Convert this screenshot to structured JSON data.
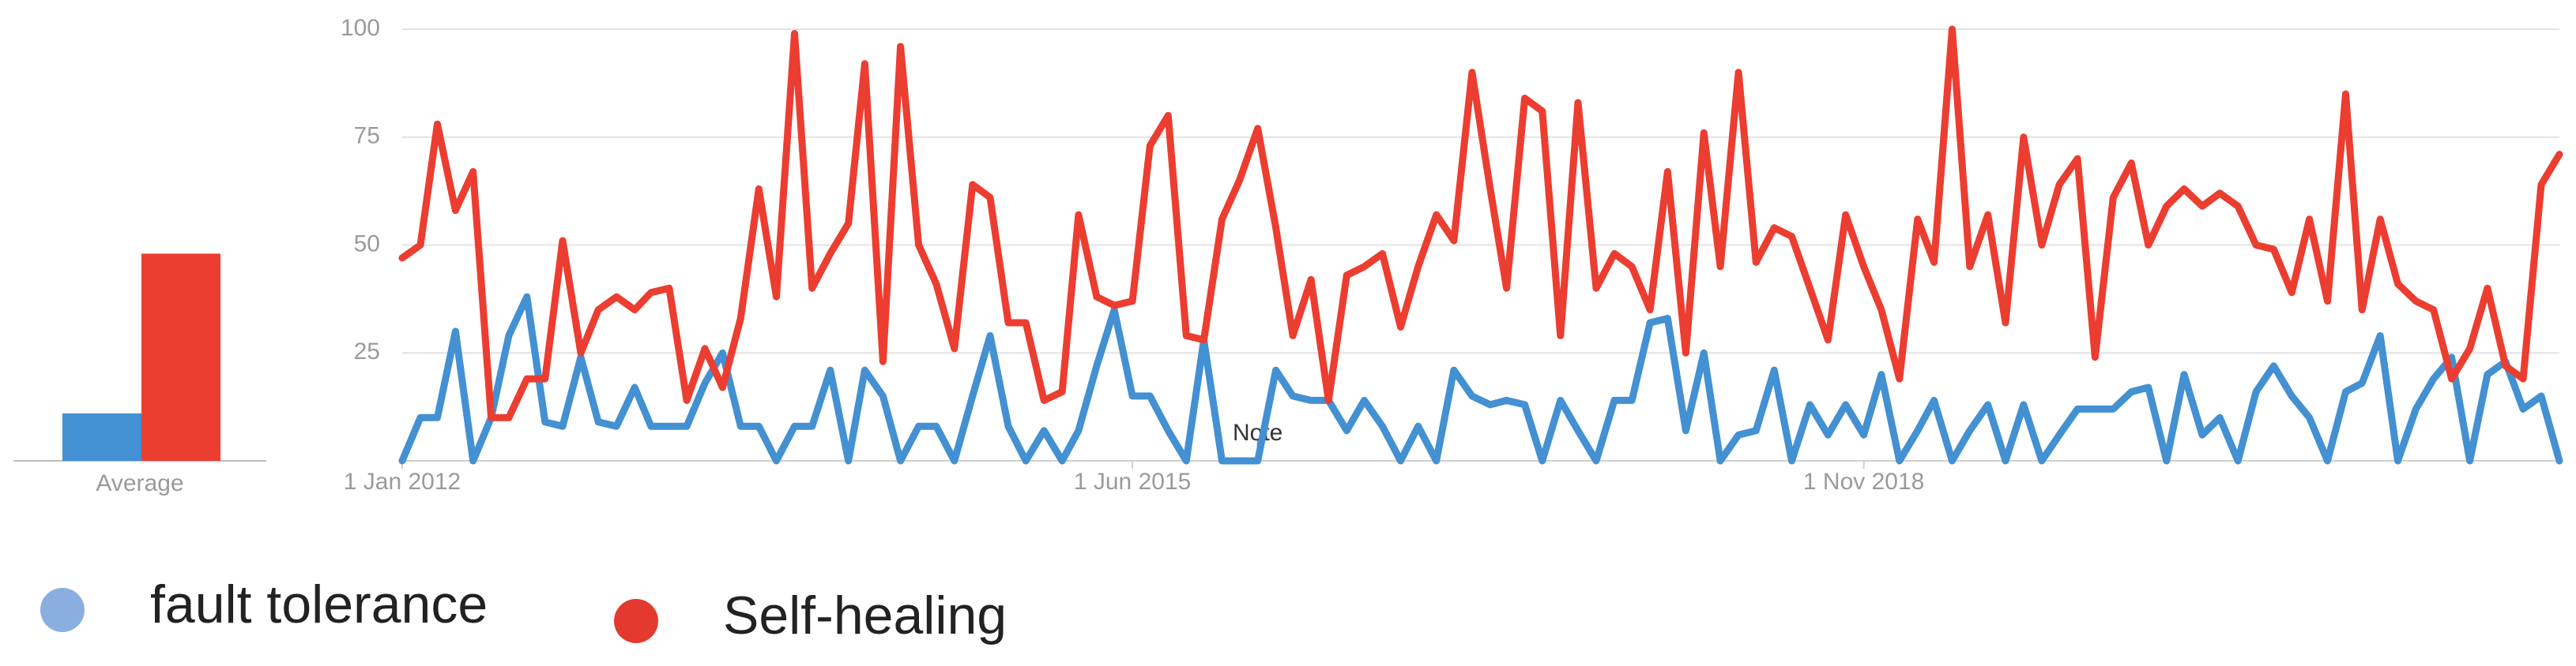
{
  "chart_data": {
    "type": "line",
    "average_label": "Average",
    "x": [
      "2012-01-01",
      "2012-02-01",
      "2012-03-01",
      "2012-04-01",
      "2012-05-01",
      "2012-06-01",
      "2012-07-01",
      "2012-08-01",
      "2012-09-01",
      "2012-10-01",
      "2012-11-01",
      "2012-12-01",
      "2013-01-01",
      "2013-02-01",
      "2013-03-01",
      "2013-04-01",
      "2013-05-01",
      "2013-06-01",
      "2013-07-01",
      "2013-08-01",
      "2013-09-01",
      "2013-10-01",
      "2013-11-01",
      "2013-12-01",
      "2014-01-01",
      "2014-02-01",
      "2014-03-01",
      "2014-04-01",
      "2014-05-01",
      "2014-06-01",
      "2014-07-01",
      "2014-08-01",
      "2014-09-01",
      "2014-10-01",
      "2014-11-01",
      "2014-12-01",
      "2015-01-01",
      "2015-02-01",
      "2015-03-01",
      "2015-04-01",
      "2015-05-01",
      "2015-06-01",
      "2015-07-01",
      "2015-08-01",
      "2015-09-01",
      "2015-10-01",
      "2015-11-01",
      "2015-12-01",
      "2016-01-01",
      "2016-02-01",
      "2016-03-01",
      "2016-04-01",
      "2016-05-01",
      "2016-06-01",
      "2016-07-01",
      "2016-08-01",
      "2016-09-01",
      "2016-10-01",
      "2016-11-01",
      "2016-12-01",
      "2017-01-01",
      "2017-02-01",
      "2017-03-01",
      "2017-04-01",
      "2017-05-01",
      "2017-06-01",
      "2017-07-01",
      "2017-08-01",
      "2017-09-01",
      "2017-10-01",
      "2017-11-01",
      "2017-12-01",
      "2018-01-01",
      "2018-02-01",
      "2018-03-01",
      "2018-04-01",
      "2018-05-01",
      "2018-06-01",
      "2018-07-01",
      "2018-08-01",
      "2018-09-01",
      "2018-10-01",
      "2018-11-01",
      "2018-12-01",
      "2019-01-01",
      "2019-02-01",
      "2019-03-01",
      "2019-04-01",
      "2019-05-01",
      "2019-06-01",
      "2019-07-01",
      "2019-08-01",
      "2019-09-01",
      "2019-10-01",
      "2019-11-01",
      "2019-12-01",
      "2020-01-01",
      "2020-02-01",
      "2020-03-01",
      "2020-04-01",
      "2020-05-01",
      "2020-06-01",
      "2020-07-01",
      "2020-08-01",
      "2020-09-01",
      "2020-10-01",
      "2020-11-01",
      "2020-12-01",
      "2021-01-01",
      "2021-02-01",
      "2021-03-01",
      "2021-04-01",
      "2021-05-01",
      "2021-06-01",
      "2021-07-01",
      "2021-08-01",
      "2021-09-01",
      "2021-10-01",
      "2021-11-01",
      "2021-12-01",
      "2022-01-01",
      "2022-02-01"
    ],
    "xlim": [
      "2012-01-01",
      "2022-02-01"
    ],
    "xticks": [
      {
        "value": "2012-01-01",
        "label": "1 Jan 2012"
      },
      {
        "value": "2015-06-01",
        "label": "1 Jun 2015"
      },
      {
        "value": "2018-11-01",
        "label": "1 Nov 2018"
      }
    ],
    "ylim": [
      0,
      100
    ],
    "yticks": [
      25,
      50,
      75,
      100
    ],
    "grid": true,
    "annotations": [
      {
        "x": "2016-01-01",
        "text": "Note"
      }
    ],
    "series": [
      {
        "name": "fault tolerance",
        "color": "#4390d2",
        "legend_color": "#8aaee0",
        "average": 11,
        "values": [
          0,
          10,
          10,
          30,
          0,
          10,
          29,
          38,
          9,
          8,
          24,
          9,
          8,
          17,
          8,
          8,
          8,
          18,
          25,
          8,
          8,
          0,
          8,
          8,
          21,
          0,
          21,
          15,
          0,
          8,
          8,
          0,
          15,
          29,
          8,
          0,
          7,
          0,
          7,
          22,
          35,
          15,
          15,
          7,
          0,
          28,
          0,
          0,
          0,
          21,
          15,
          14,
          14,
          7,
          14,
          8,
          0,
          8,
          0,
          21,
          15,
          13,
          14,
          13,
          0,
          14,
          7,
          0,
          14,
          14,
          32,
          33,
          7,
          25,
          0,
          6,
          7,
          21,
          0,
          13,
          6,
          13,
          6,
          20,
          0,
          7,
          14,
          0,
          7,
          13,
          0,
          13,
          0,
          6,
          12,
          12,
          12,
          16,
          17,
          0,
          20,
          6,
          10,
          0,
          16,
          22,
          15,
          10,
          0,
          16,
          18,
          29,
          0,
          12,
          19,
          24,
          0,
          20,
          23,
          12,
          15,
          0
        ]
      },
      {
        "name": "Self-healing",
        "color": "#ec3d31",
        "legend_color": "#e3392e",
        "average": 48,
        "values": [
          47,
          50,
          78,
          58,
          67,
          10,
          10,
          19,
          19,
          51,
          25,
          35,
          38,
          35,
          39,
          40,
          14,
          26,
          17,
          33,
          63,
          38,
          99,
          40,
          48,
          55,
          92,
          23,
          96,
          50,
          41,
          26,
          64,
          61,
          32,
          32,
          14,
          16,
          57,
          38,
          36,
          37,
          73,
          80,
          29,
          28,
          56,
          65,
          77,
          54,
          29,
          42,
          14,
          43,
          45,
          48,
          31,
          45,
          57,
          51,
          90,
          63,
          40,
          84,
          81,
          29,
          83,
          40,
          48,
          45,
          35,
          67,
          25,
          76,
          45,
          90,
          46,
          54,
          52,
          40,
          28,
          57,
          45,
          35,
          19,
          56,
          46,
          100,
          45,
          57,
          32,
          75,
          50,
          64,
          70,
          24,
          61,
          69,
          50,
          59,
          63,
          59,
          62,
          59,
          50,
          49,
          39,
          56,
          37,
          85,
          35,
          56,
          41,
          37,
          35,
          19,
          26,
          40,
          22,
          19,
          64,
          71
        ]
      }
    ]
  }
}
